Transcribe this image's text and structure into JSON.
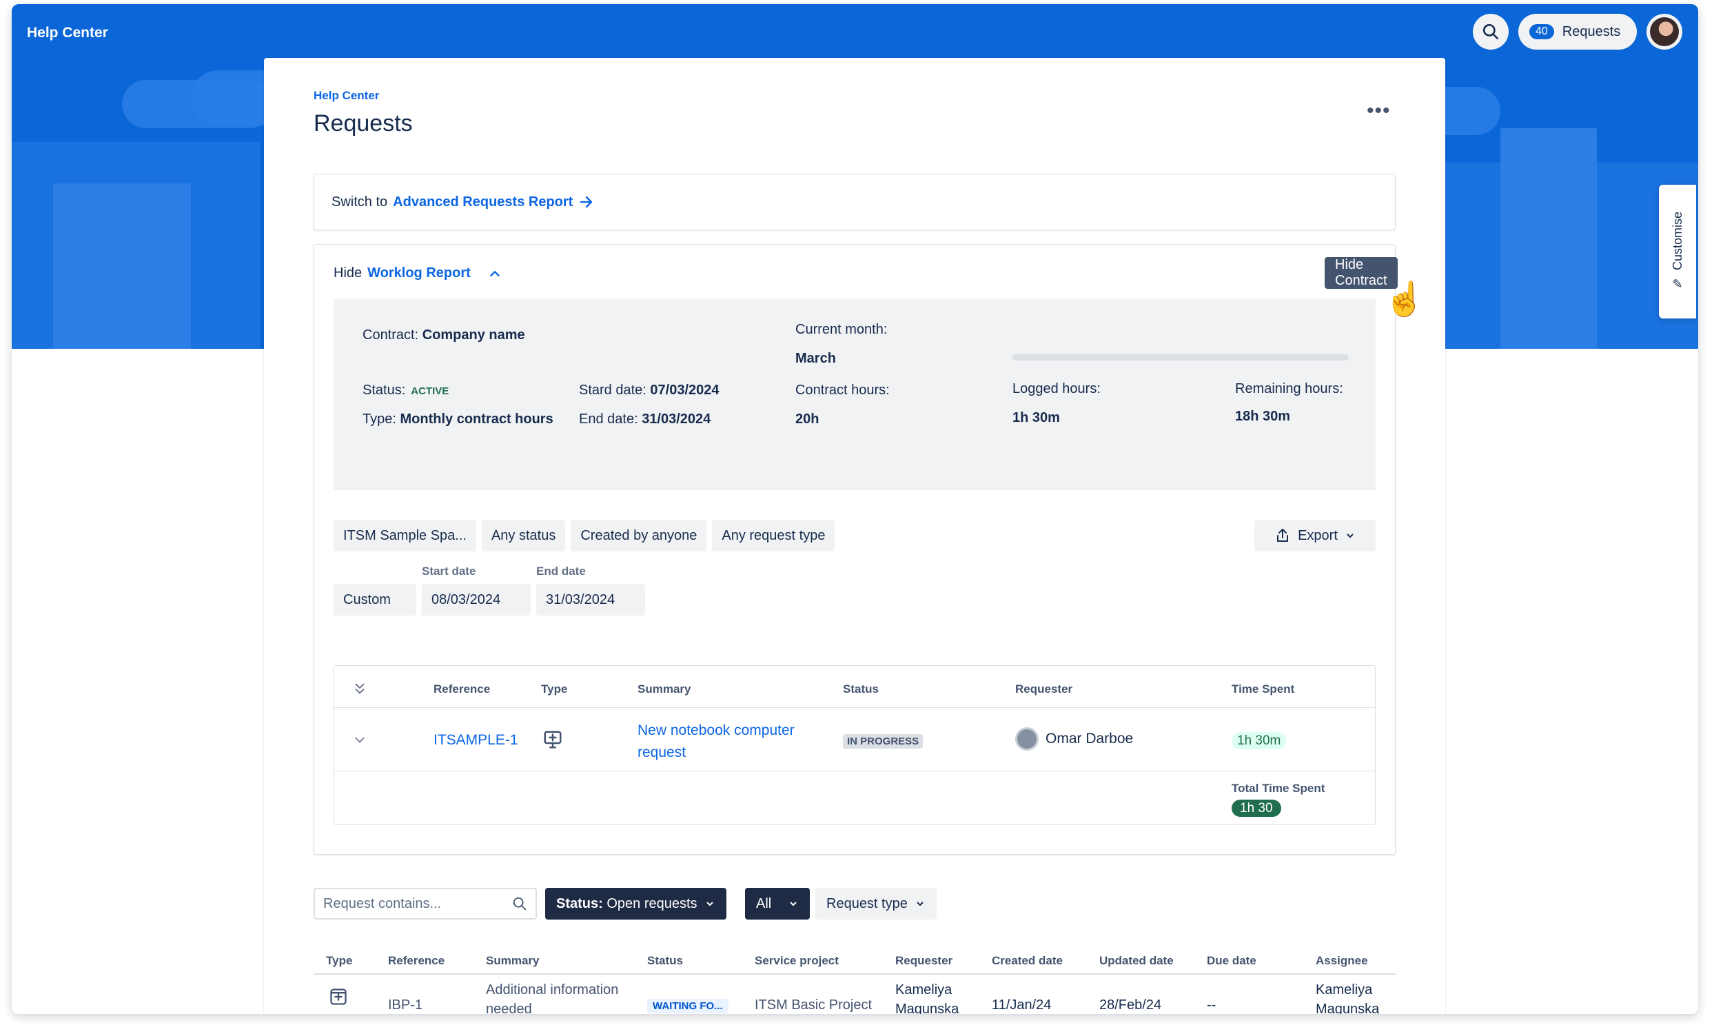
{
  "header": {
    "brand": "Help Center",
    "requests_count": "40",
    "requests_label": "Requests",
    "customise_label": "Customise"
  },
  "page": {
    "breadcrumb": "Help Center",
    "title": "Requests",
    "more": "•••"
  },
  "switch": {
    "prefix": "Switch to",
    "link": "Advanced Requests Report"
  },
  "worklog": {
    "hide_prefix": "Hide",
    "title": "Worklog Report",
    "hide_contract_button": "Hide Contract",
    "contract": {
      "contract_label": "Contract:",
      "contract_value": "Company name",
      "status_label": "Status:",
      "status_value": "ACTIVE",
      "type_label": "Type:",
      "type_value": "Monthly contract hours",
      "start_label": "Stard date:",
      "start_value": "07/03/2024",
      "end_label": "End date:",
      "end_value": "31/03/2024",
      "month_label": "Current month:",
      "month_value": "March",
      "hours_label": "Contract hours:",
      "hours_value": "20h",
      "logged_label": "Logged hours:",
      "logged_value": "1h 30m",
      "remaining_label": "Remaining hours:",
      "remaining_value": "18h 30m",
      "progress_fraction": 0.075
    },
    "filters": [
      "ITSM Sample Spa...",
      "Any status",
      "Created by anyone",
      "Any request type"
    ],
    "export_label": "Export",
    "date_range": {
      "preset": "Custom",
      "start_label": "Start date",
      "start_value": "08/03/2024",
      "end_label": "End date",
      "end_value": "31/03/2024"
    },
    "table": {
      "headers": [
        "Reference",
        "Type",
        "Summary",
        "Status",
        "Requester",
        "Time Spent"
      ],
      "row": {
        "reference": "ITSAMPLE-1",
        "summary_line1": "New notebook computer",
        "summary_line2": "request",
        "status": "IN PROGRESS",
        "requester": "Omar Darboe",
        "time_spent": "1h 30m"
      },
      "total_label": "Total Time Spent",
      "total_value": "1h 30"
    }
  },
  "requests": {
    "search_placeholder": "Request contains...",
    "status_filter_bold": "Status:",
    "status_filter_value": "Open requests",
    "all_filter": "All",
    "type_filter": "Request type",
    "headers": [
      "Type",
      "Reference",
      "Summary",
      "Status",
      "Service project",
      "Requester",
      "Created date",
      "Updated date",
      "Due date",
      "Assignee"
    ],
    "row": {
      "reference": "IBP-1",
      "summary_line1": "Additional information",
      "summary_line2": "needed",
      "status": "WAITING FO...",
      "project": "ITSM Basic Project",
      "requester_line1": "Kameliya",
      "requester_line2": "Magunska",
      "created": "11/Jan/24",
      "updated": "28/Feb/24",
      "due": "--",
      "assignee_line1": "Kameliya",
      "assignee_line2": "Magunska"
    }
  },
  "colors": {
    "brand_blue": "#0b66d8",
    "link_blue": "#0c66e4",
    "success_green": "#216e4e"
  }
}
